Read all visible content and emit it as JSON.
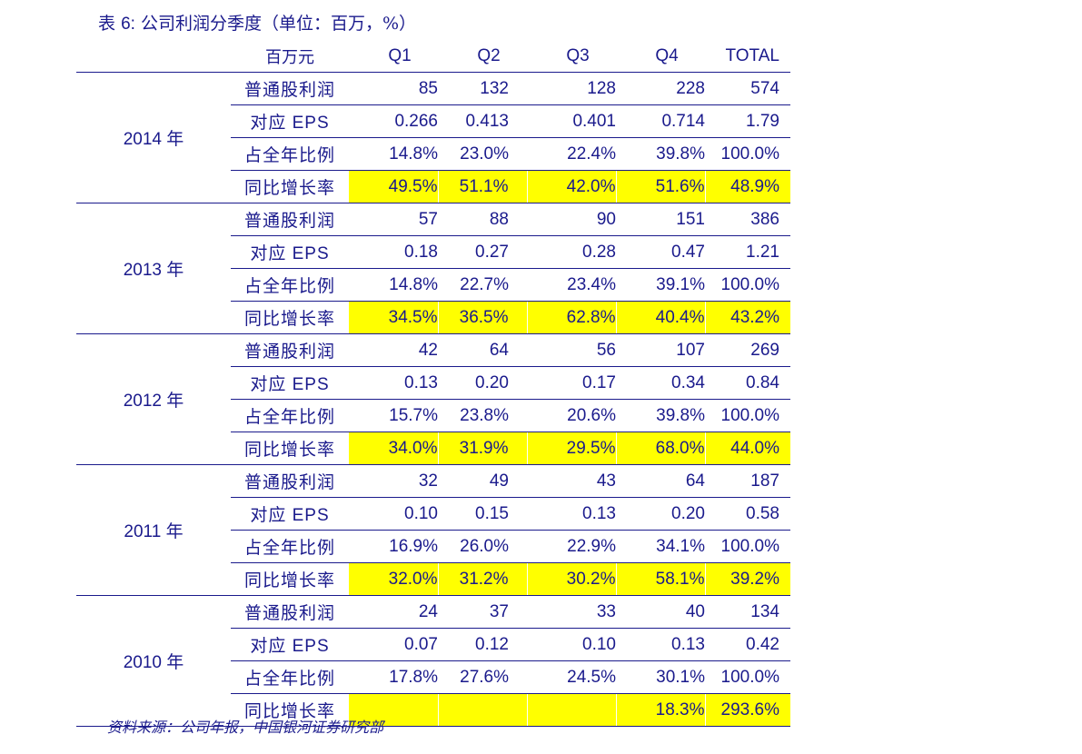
{
  "title": {
    "prefix": "表",
    "number": "6:",
    "text": "公司利润分季度（单位：百万，%）"
  },
  "table": {
    "header": {
      "label": "百万元",
      "columns": [
        "Q1",
        "Q2",
        "Q3",
        "Q4",
        "TOTAL"
      ]
    },
    "groups": [
      {
        "year": "2014",
        "year_suffix": "年",
        "rows": [
          {
            "label": "普通股利润",
            "values": [
              "85",
              "132",
              "128",
              "228",
              "574"
            ]
          },
          {
            "label": "对应 EPS",
            "values": [
              "0.266",
              "0.413",
              "0.401",
              "0.714",
              "1.79"
            ]
          },
          {
            "label": "占全年比例",
            "values": [
              "14.8%",
              "23.0%",
              "22.4%",
              "39.8%",
              "100.0%"
            ]
          },
          {
            "label": "同比增长率",
            "values": [
              "49.5%",
              "51.1%",
              "42.0%",
              "51.6%",
              "48.9%"
            ]
          }
        ]
      },
      {
        "year": "2013",
        "year_suffix": "年",
        "rows": [
          {
            "label": "普通股利润",
            "values": [
              "57",
              "88",
              "90",
              "151",
              "386"
            ]
          },
          {
            "label": "对应 EPS",
            "values": [
              "0.18",
              "0.27",
              "0.28",
              "0.47",
              "1.21"
            ]
          },
          {
            "label": "占全年比例",
            "values": [
              "14.8%",
              "22.7%",
              "23.4%",
              "39.1%",
              "100.0%"
            ]
          },
          {
            "label": "同比增长率",
            "values": [
              "34.5%",
              "36.5%",
              "62.8%",
              "40.4%",
              "43.2%"
            ]
          }
        ]
      },
      {
        "year": "2012",
        "year_suffix": "年",
        "rows": [
          {
            "label": "普通股利润",
            "values": [
              "42",
              "64",
              "56",
              "107",
              "269"
            ]
          },
          {
            "label": "对应 EPS",
            "values": [
              "0.13",
              "0.20",
              "0.17",
              "0.34",
              "0.84"
            ]
          },
          {
            "label": "占全年比例",
            "values": [
              "15.7%",
              "23.8%",
              "20.6%",
              "39.8%",
              "100.0%"
            ]
          },
          {
            "label": "同比增长率",
            "values": [
              "34.0%",
              "31.9%",
              "29.5%",
              "68.0%",
              "44.0%"
            ]
          }
        ]
      },
      {
        "year": "2011",
        "year_suffix": "年",
        "rows": [
          {
            "label": "普通股利润",
            "values": [
              "32",
              "49",
              "43",
              "64",
              "187"
            ]
          },
          {
            "label": "对应 EPS",
            "values": [
              "0.10",
              "0.15",
              "0.13",
              "0.20",
              "0.58"
            ]
          },
          {
            "label": "占全年比例",
            "values": [
              "16.9%",
              "26.0%",
              "22.9%",
              "34.1%",
              "100.0%"
            ]
          },
          {
            "label": "同比增长率",
            "values": [
              "32.0%",
              "31.2%",
              "30.2%",
              "58.1%",
              "39.2%"
            ]
          }
        ]
      },
      {
        "year": "2010",
        "year_suffix": "年",
        "rows": [
          {
            "label": "普通股利润",
            "values": [
              "24",
              "37",
              "33",
              "40",
              "134"
            ]
          },
          {
            "label": "对应 EPS",
            "values": [
              "0.07",
              "0.12",
              "0.10",
              "0.13",
              "0.42"
            ]
          },
          {
            "label": "占全年比例",
            "values": [
              "17.8%",
              "27.6%",
              "24.5%",
              "30.1%",
              "100.0%"
            ]
          },
          {
            "label": "同比增长率",
            "values": [
              "",
              "",
              "",
              "18.3%",
              "293.6%"
            ]
          }
        ]
      }
    ],
    "highlight_color": "#ffff00",
    "text_color": "#1a1a8c"
  },
  "source": "资料来源：公司年报，中国银河证券研究部"
}
